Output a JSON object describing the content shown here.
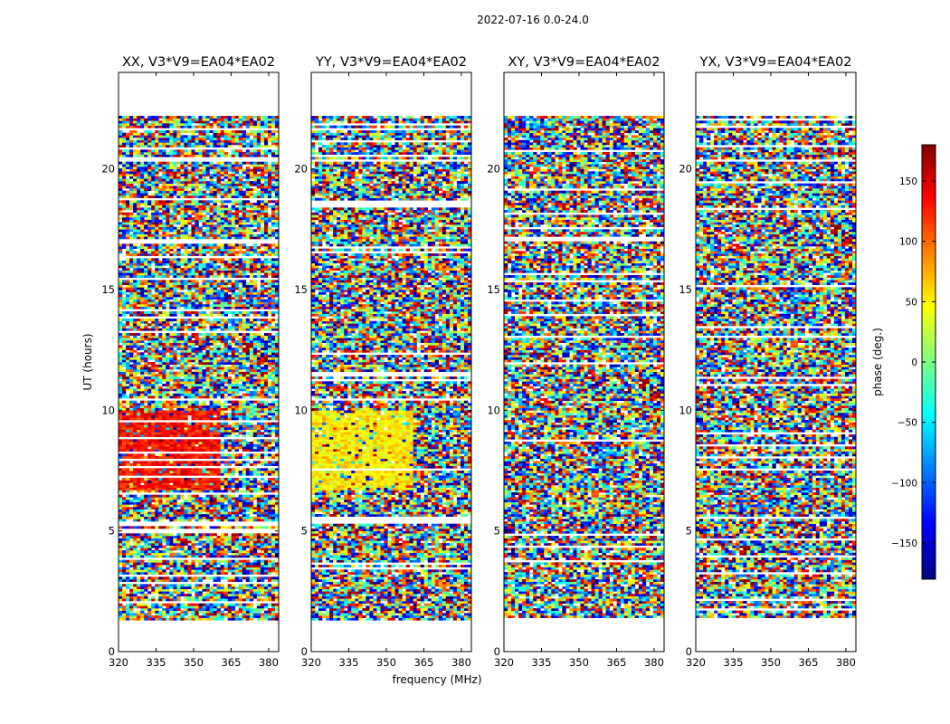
{
  "figure": {
    "suptitle": "2022-07-16 0.0-24.0",
    "xlabel": "frequency (MHz)",
    "ylabel": "UT (hours)"
  },
  "chart_data": {
    "type": "heatmap",
    "x_ticks": [
      320,
      335,
      350,
      365,
      380
    ],
    "y_ticks": [
      0,
      5,
      10,
      15,
      20
    ],
    "xlim": [
      320,
      384
    ],
    "ylim": [
      0,
      24
    ],
    "colormap": "jet",
    "colorbar": {
      "label": "phase (deg.)",
      "ticks": [
        150,
        100,
        50,
        0,
        -50,
        -100,
        -150
      ],
      "range": [
        -180,
        180
      ]
    },
    "panels": [
      {
        "title": "XX, V3*V9=EA04*EA02",
        "coherent_phase_band": {
          "ut": [
            6.6,
            9.9
          ],
          "freq": [
            320,
            360
          ],
          "phase_deg": 130
        }
      },
      {
        "title": "YY, V3*V9=EA04*EA02",
        "coherent_phase_band": {
          "ut": [
            6.6,
            9.9
          ],
          "freq": [
            320,
            360
          ],
          "phase_deg": 50
        }
      },
      {
        "title": "XY, V3*V9=EA04*EA02"
      },
      {
        "title": "YX, V3*V9=EA04*EA02"
      }
    ],
    "data_coverage_ut": [
      1.3,
      22.2
    ]
  },
  "colors": {
    "axes": "#000000",
    "background": "#ffffff"
  }
}
